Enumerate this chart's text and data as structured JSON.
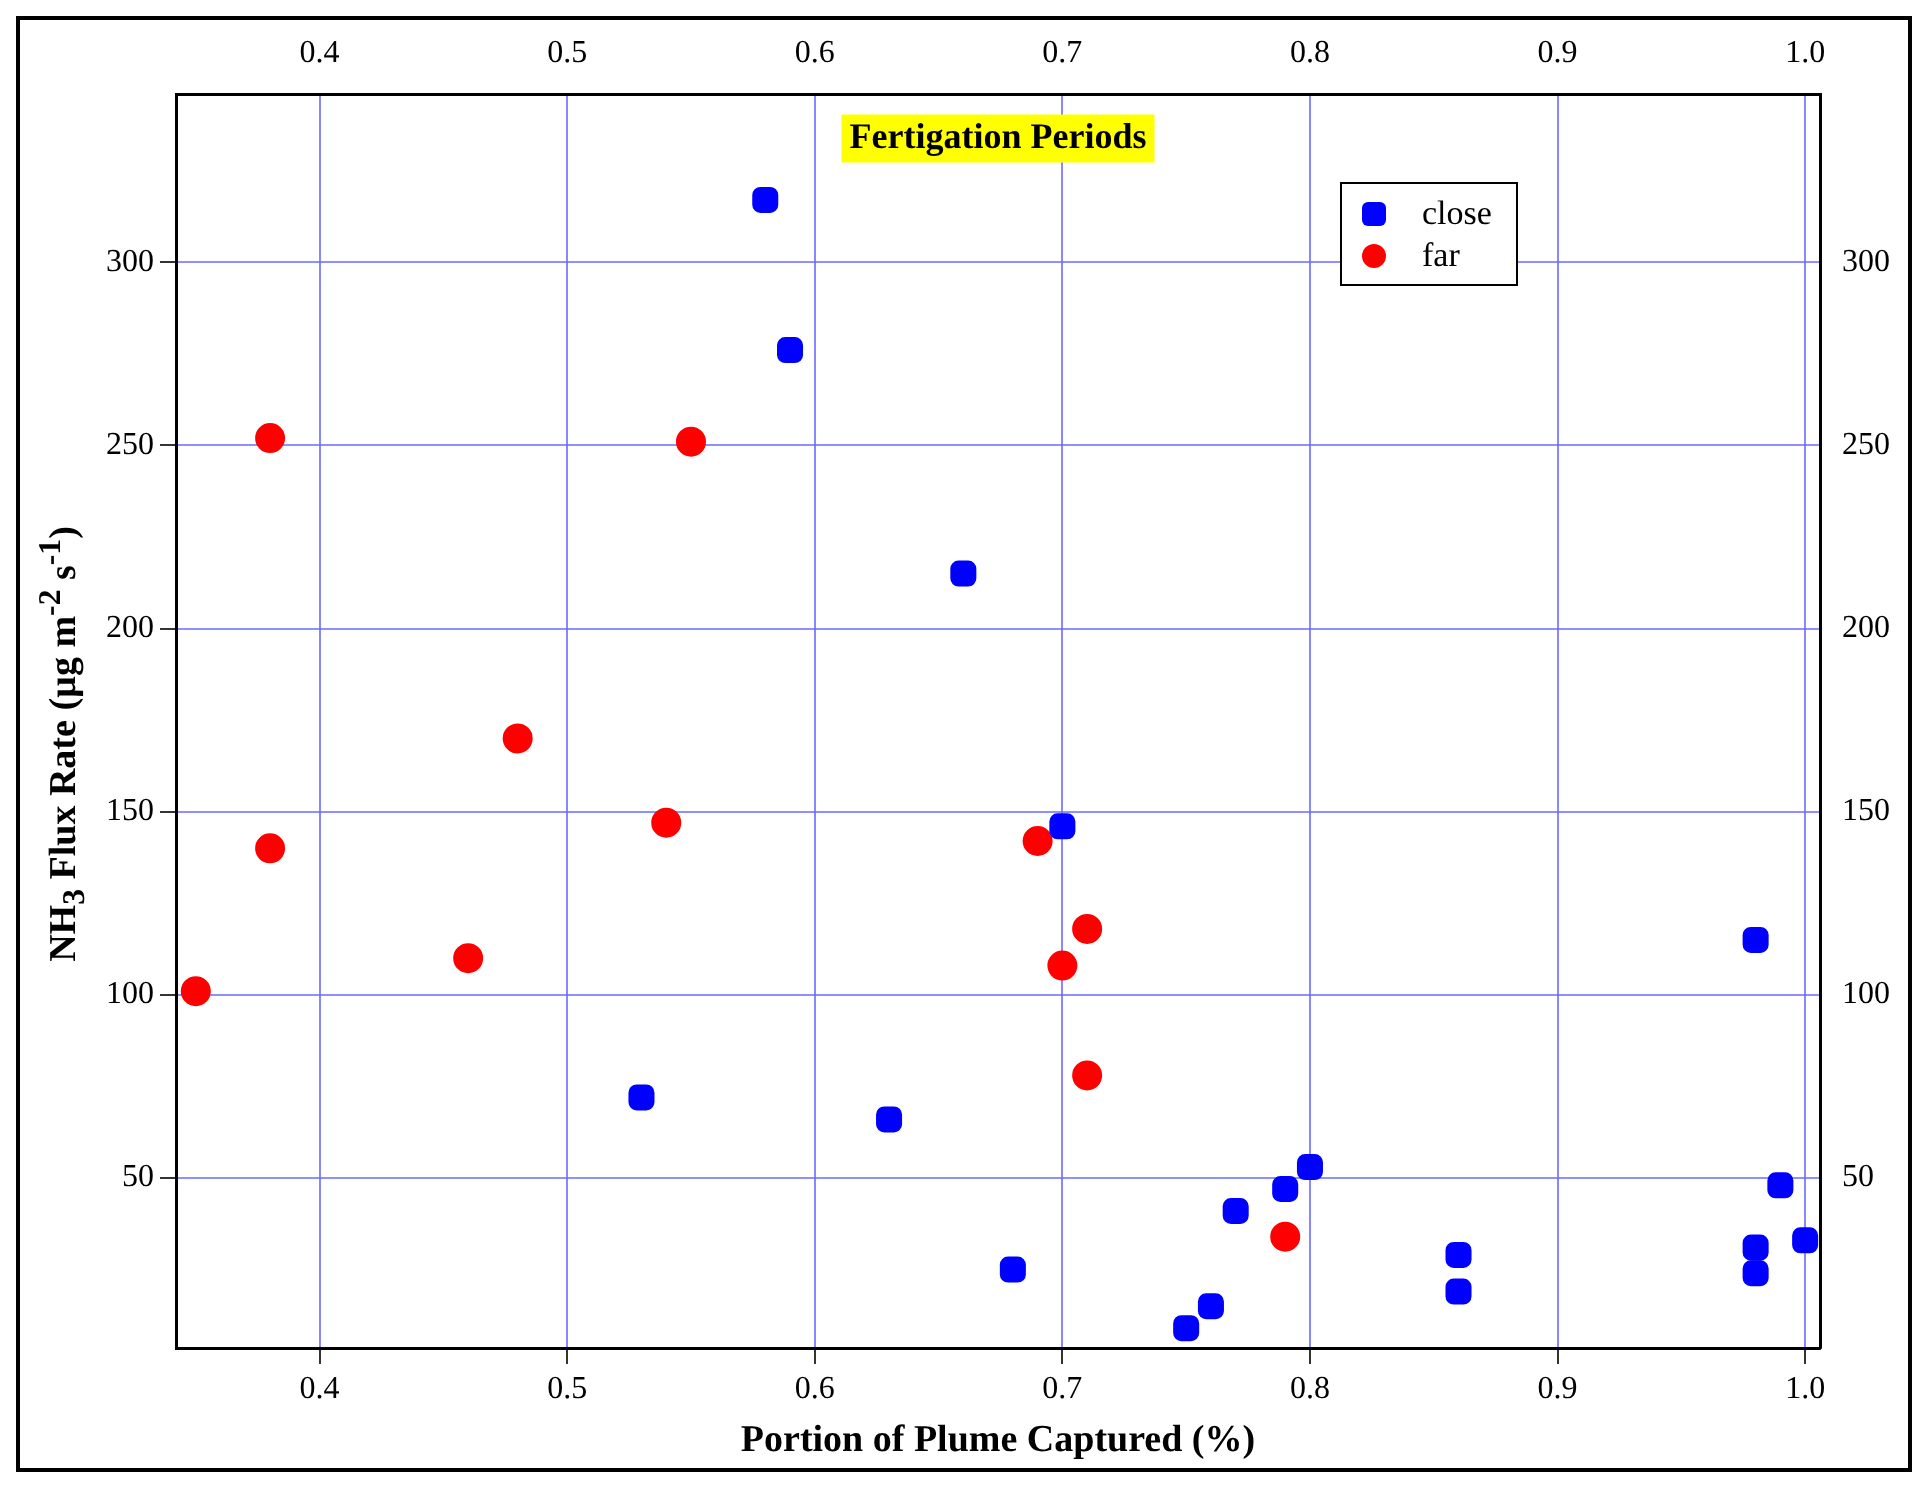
{
  "chart_data": {
    "type": "scatter",
    "xlabel": "Portion of Plume Captured (%)",
    "ylabel": "NH$_{3}$ Flux Rate (µg m$^{-2}$ s$^{-1}$)",
    "annotations": [
      "Fertigation Periods"
    ],
    "series": [
      {
        "name": "close",
        "color": "#0000ff",
        "marker": "square",
        "x": [
          0.58,
          0.59,
          0.66,
          0.7,
          0.53,
          0.63,
          0.68,
          0.75,
          0.76,
          0.77,
          0.79,
          0.8,
          0.86,
          0.86,
          0.98,
          0.98,
          0.98,
          0.99,
          1.0
        ],
        "values": [
          317,
          276,
          215,
          146,
          72,
          66,
          25,
          9,
          15,
          41,
          47,
          53,
          29,
          19,
          115,
          31,
          24,
          48,
          33
        ]
      },
      {
        "name": "far",
        "color": "#ff0000",
        "marker": "circle",
        "x": [
          0.35,
          0.38,
          0.38,
          0.46,
          0.48,
          0.54,
          0.55,
          0.69,
          0.7,
          0.71,
          0.71,
          0.79
        ],
        "values": [
          101,
          252,
          140,
          110,
          170,
          147,
          251,
          142,
          108,
          118,
          78,
          34
        ]
      }
    ],
    "xlim": [
      0.342,
      1.006
    ],
    "xticks": [
      0.4,
      0.5,
      0.6,
      0.7,
      0.8,
      0.9,
      {
        "value": 1,
        "label": "1.0"
      }
    ],
    "x2lim": [
      0.342,
      1.006
    ],
    "x2ticks": [
      0.4,
      0.5,
      0.6,
      0.7,
      0.8,
      0.9,
      {
        "value": 1,
        "label": "1.0"
      }
    ],
    "ylim": [
      3.6,
      345.8
    ],
    "yticks": [
      50,
      100,
      150,
      200,
      250,
      300
    ],
    "y2lim": [
      3.6,
      345.8
    ],
    "y2ticks": [
      50,
      100,
      150,
      200,
      250,
      300
    ],
    "grid": true,
    "legend": "top right"
  }
}
